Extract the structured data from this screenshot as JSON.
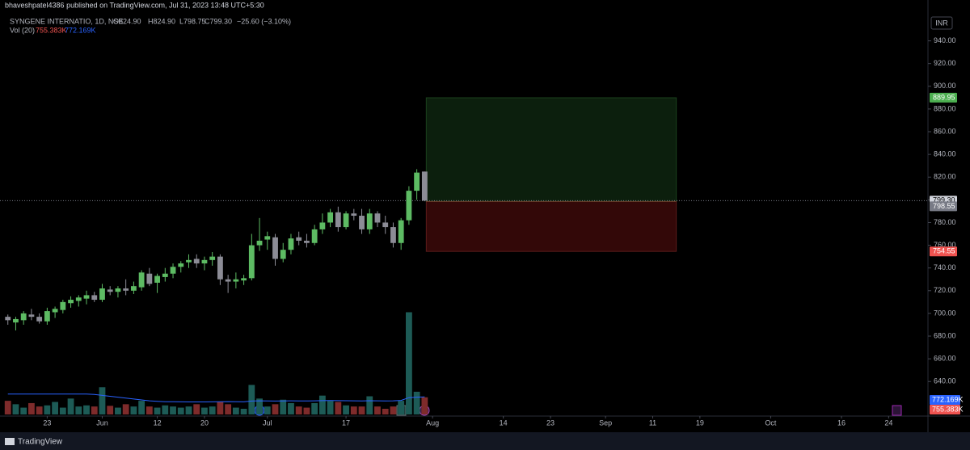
{
  "header": {
    "publisher": "bhaveshpatel4386 published on TradingView.com, Jul 31, 2023 13:48 UTC+5:30",
    "legend": "SYNGENE INTERNATIO, 1D, NSE",
    "ohlc": [
      "O824.90",
      "H824.90",
      "L798.75",
      "C799.30"
    ],
    "change": "−25.60 (−3.10%)",
    "vol_label": "Vol (20)",
    "currency": "INR"
  },
  "footer": {
    "brand": "TradingView"
  },
  "chart_data": {
    "type": "candlestick",
    "up_color": "#5dbb63",
    "down_color": "#8c8c96",
    "vol_up_color": "#1d5b56",
    "vol_down_color": "#7e2b2b",
    "ma_color": "#2962ff",
    "xlim": [
      -1,
      117
    ],
    "xticks": [
      {
        "value": 5,
        "label": "23"
      },
      {
        "value": 12,
        "label": "Jun"
      },
      {
        "value": 19,
        "label": "12"
      },
      {
        "value": 25,
        "label": "20"
      },
      {
        "value": 33,
        "label": "Jul"
      },
      {
        "value": 43,
        "label": "17"
      },
      {
        "value": 54,
        "label": "Aug"
      },
      {
        "value": 63,
        "label": "14"
      },
      {
        "value": 69,
        "label": "23"
      },
      {
        "value": 76,
        "label": "Sep"
      },
      {
        "value": 82,
        "label": "11"
      },
      {
        "value": 88,
        "label": "19"
      },
      {
        "value": 97,
        "label": "Oct"
      },
      {
        "value": 106,
        "label": "16"
      },
      {
        "value": 112,
        "label": "24"
      }
    ],
    "ylim": [
      611,
      971
    ],
    "yticks": [
      {
        "value": 640,
        "label": "640.00"
      },
      {
        "value": 660,
        "label": "660.00"
      },
      {
        "value": 680,
        "label": "680.00"
      },
      {
        "value": 700,
        "label": "700.00"
      },
      {
        "value": 720,
        "label": "720.00"
      },
      {
        "value": 740,
        "label": "740.00"
      },
      {
        "value": 760,
        "label": "760.00"
      },
      {
        "value": 780,
        "label": "780.00"
      },
      {
        "value": 800,
        "label": "800.00"
      },
      {
        "value": 820,
        "label": "820.00"
      },
      {
        "value": 840,
        "label": "840.00"
      },
      {
        "value": 860,
        "label": "860.00"
      },
      {
        "value": 880,
        "label": "880.00"
      },
      {
        "value": 900,
        "label": "900.00"
      },
      {
        "value": 920,
        "label": "920.00"
      },
      {
        "value": 940,
        "label": "940.00"
      }
    ],
    "open": [
      697,
      692,
      694,
      699,
      697,
      693,
      701,
      703,
      709,
      711,
      713,
      716,
      712,
      721,
      719,
      722,
      720,
      723,
      735,
      727,
      732,
      735,
      741,
      745,
      748,
      744,
      747,
      750,
      730,
      728,
      729,
      731,
      760,
      765,
      767,
      748,
      756,
      767,
      764,
      762,
      774,
      780,
      789,
      776,
      788,
      786,
      774,
      788,
      780,
      776,
      762,
      782,
      808,
      824.9
    ],
    "high": [
      699,
      697,
      702,
      704,
      700,
      705,
      706,
      712,
      715,
      716,
      720,
      719,
      726,
      724,
      724,
      730,
      728,
      738,
      740,
      735,
      740,
      744,
      746,
      752,
      752,
      750,
      754,
      752,
      734,
      736,
      734,
      770,
      784,
      772,
      770,
      762,
      770,
      772,
      770,
      778,
      788,
      792,
      794,
      790,
      792,
      792,
      792,
      790,
      786,
      780,
      784,
      812,
      827,
      824.9
    ],
    "low": [
      690,
      685,
      690,
      694,
      691,
      690,
      696,
      700,
      705,
      706,
      708,
      710,
      710,
      716,
      714,
      716,
      717,
      720,
      724,
      718,
      728,
      731,
      736,
      740,
      740,
      738,
      742,
      725,
      718,
      722,
      725,
      729,
      755,
      756,
      742,
      745,
      752,
      760,
      758,
      760,
      770,
      776,
      772,
      774,
      782,
      770,
      770,
      776,
      770,
      758,
      756,
      778,
      800,
      798.75
    ],
    "close": [
      694,
      695,
      700,
      697,
      693,
      702,
      704,
      710,
      712,
      714,
      716,
      712,
      722,
      719,
      722,
      720,
      724,
      736,
      726,
      733,
      735,
      741,
      744,
      747,
      744,
      747,
      750,
      730,
      728,
      730,
      731,
      760,
      764,
      768,
      748,
      756,
      766,
      764,
      762,
      774,
      780,
      789,
      776,
      788,
      786,
      774,
      788,
      780,
      776,
      762,
      782,
      808,
      824,
      799.3
    ],
    "volume": [
      600000,
      450000,
      300000,
      500000,
      350000,
      400000,
      550000,
      300000,
      700000,
      350000,
      400000,
      350000,
      1200000,
      380000,
      300000,
      450000,
      350000,
      600000,
      350000,
      300000,
      400000,
      350000,
      300000,
      350000,
      450000,
      300000,
      350000,
      550000,
      450000,
      300000,
      250000,
      1300000,
      700000,
      350000,
      450000,
      650000,
      500000,
      350000,
      300000,
      500000,
      830000,
      600000,
      550000,
      400000,
      350000,
      350000,
      800000,
      350000,
      250000,
      350000,
      600000,
      4500000,
      1000000,
      755383
    ],
    "volume_ma": [
      900000,
      900000,
      900000,
      900000,
      900000,
      900000,
      900000,
      900000,
      900000,
      900000,
      900000,
      880000,
      840000,
      800000,
      760000,
      720000,
      680000,
      640000,
      600000,
      580000,
      560000,
      560000,
      555000,
      550000,
      550000,
      552000,
      555000,
      560000,
      565000,
      560000,
      555000,
      590000,
      600000,
      595000,
      590000,
      595000,
      600000,
      598000,
      595000,
      600000,
      610000,
      612000,
      610000,
      605000,
      600000,
      598000,
      605000,
      600000,
      598000,
      600000,
      620000,
      740000,
      760000,
      772169
    ],
    "volume_ylim": [
      0,
      18000000
    ],
    "volume_labels": {
      "ma": "772.169K",
      "last": "755.383K"
    },
    "last_price": {
      "value": 799.3,
      "label": "799.30"
    },
    "position": {
      "start": 53.2,
      "end": 85,
      "entry": {
        "value": 798.55,
        "label": "798.55"
      },
      "target": {
        "value": 889.95,
        "label": "889.95"
      },
      "stop": {
        "value": 754.55,
        "label": "754.55"
      }
    }
  }
}
